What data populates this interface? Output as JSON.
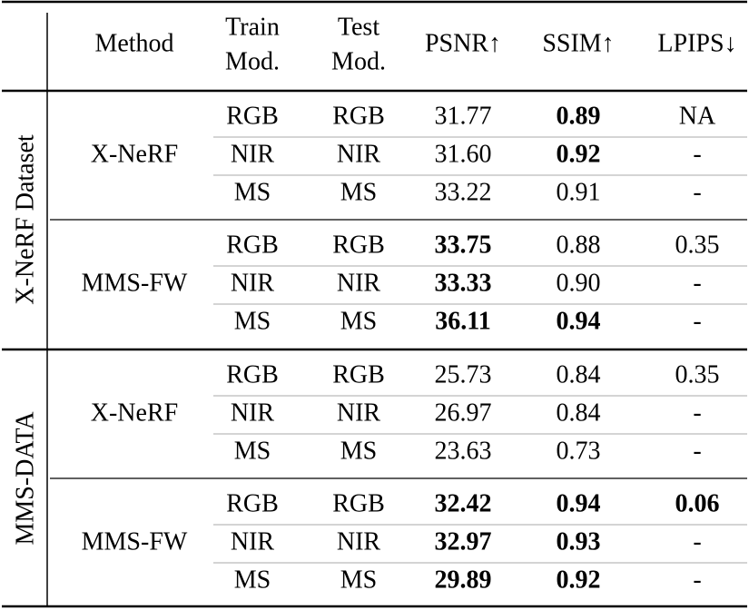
{
  "header": {
    "columns": [
      {
        "key": "method",
        "lines": [
          "Method"
        ]
      },
      {
        "key": "train",
        "lines": [
          "Train",
          "Mod."
        ]
      },
      {
        "key": "test",
        "lines": [
          "Test",
          "Mod."
        ]
      },
      {
        "key": "psnr",
        "lines": [
          "PSNR↑"
        ]
      },
      {
        "key": "ssim",
        "lines": [
          "SSIM↑"
        ]
      },
      {
        "key": "lpips",
        "lines": [
          "LPIPS↓"
        ]
      }
    ]
  },
  "modality_colors": {
    "RGB": "#1f9e50",
    "NIR": "#e5181d",
    "MS": "#e9a23b"
  },
  "groups": [
    {
      "dataset": "X-NeRF Dataset",
      "methods": [
        {
          "name": "X-NeRF",
          "rows": [
            {
              "train": "RGB",
              "test": "RGB",
              "psnr": "31.77",
              "ssim": "0.89",
              "lpips": "NA",
              "bold": [
                "ssim"
              ]
            },
            {
              "train": "NIR",
              "test": "NIR",
              "psnr": "31.60",
              "ssim": "0.92",
              "lpips": "-",
              "bold": [
                "ssim"
              ]
            },
            {
              "train": "MS",
              "test": "MS",
              "psnr": "33.22",
              "ssim": "0.91",
              "lpips": "-",
              "bold": []
            }
          ]
        },
        {
          "name": "MMS-FW",
          "rows": [
            {
              "train": "RGB",
              "test": "RGB",
              "psnr": "33.75",
              "ssim": "0.88",
              "lpips": "0.35",
              "bold": [
                "psnr"
              ]
            },
            {
              "train": "NIR",
              "test": "NIR",
              "psnr": "33.33",
              "ssim": "0.90",
              "lpips": "-",
              "bold": [
                "psnr"
              ]
            },
            {
              "train": "MS",
              "test": "MS",
              "psnr": "36.11",
              "ssim": "0.94",
              "lpips": "-",
              "bold": [
                "psnr",
                "ssim"
              ]
            }
          ]
        }
      ]
    },
    {
      "dataset": "MMS-DATA",
      "methods": [
        {
          "name": "X-NeRF",
          "rows": [
            {
              "train": "RGB",
              "test": "RGB",
              "psnr": "25.73",
              "ssim": "0.84",
              "lpips": "0.35",
              "bold": []
            },
            {
              "train": "NIR",
              "test": "NIR",
              "psnr": "26.97",
              "ssim": "0.84",
              "lpips": "-",
              "bold": []
            },
            {
              "train": "MS",
              "test": "MS",
              "psnr": "23.63",
              "ssim": "0.73",
              "lpips": "-",
              "bold": []
            }
          ]
        },
        {
          "name": "MMS-FW",
          "rows": [
            {
              "train": "RGB",
              "test": "RGB",
              "psnr": "32.42",
              "ssim": "0.94",
              "lpips": "0.06",
              "bold": [
                "psnr",
                "ssim",
                "lpips"
              ]
            },
            {
              "train": "NIR",
              "test": "NIR",
              "psnr": "32.97",
              "ssim": "0.93",
              "lpips": "-",
              "bold": [
                "psnr",
                "ssim"
              ]
            },
            {
              "train": "MS",
              "test": "MS",
              "psnr": "29.89",
              "ssim": "0.92",
              "lpips": "-",
              "bold": [
                "psnr",
                "ssim"
              ]
            }
          ]
        }
      ]
    }
  ]
}
